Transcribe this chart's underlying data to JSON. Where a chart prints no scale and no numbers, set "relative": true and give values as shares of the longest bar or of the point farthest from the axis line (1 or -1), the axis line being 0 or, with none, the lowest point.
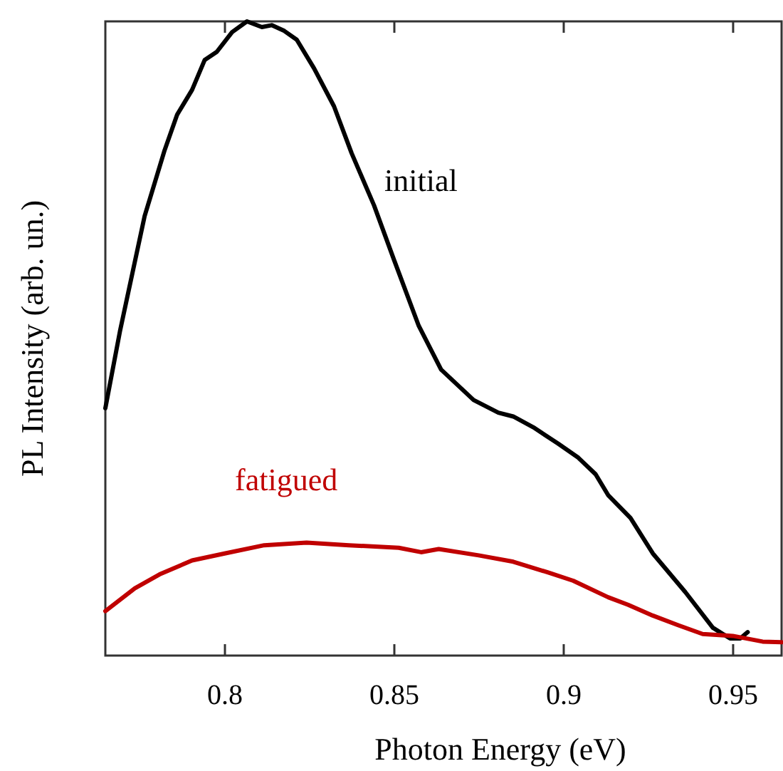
{
  "chart_data": {
    "type": "line",
    "xlabel": "Photon Energy (eV)",
    "ylabel": "PL Intensity (arb. un.)",
    "relative": true,
    "xlim": [
      0.7647,
      0.9643
    ],
    "xticks": [
      0.8,
      0.85,
      0.9,
      0.95
    ],
    "legend": false,
    "grid": false,
    "marker": "none",
    "line_style": "solid",
    "series": [
      {
        "name": "initial",
        "color": "#000000",
        "x": [
          0.7647,
          0.769,
          0.7763,
          0.7822,
          0.7859,
          0.7903,
          0.794,
          0.7976,
          0.8021,
          0.8065,
          0.8109,
          0.8138,
          0.8175,
          0.8212,
          0.8263,
          0.8322,
          0.8374,
          0.844,
          0.8499,
          0.8572,
          0.8638,
          0.8734,
          0.8807,
          0.8851,
          0.891,
          0.8984,
          0.9043,
          0.9094,
          0.9131,
          0.9197,
          0.9263,
          0.9359,
          0.944,
          0.9491,
          0.9521,
          0.9543
        ],
        "values": [
          0.39,
          0.511,
          0.693,
          0.797,
          0.853,
          0.892,
          0.939,
          0.952,
          0.983,
          1.0,
          0.991,
          0.994,
          0.985,
          0.971,
          0.926,
          0.866,
          0.792,
          0.71,
          0.624,
          0.52,
          0.451,
          0.403,
          0.383,
          0.377,
          0.36,
          0.334,
          0.312,
          0.286,
          0.253,
          0.217,
          0.161,
          0.1,
          0.044,
          0.027,
          0.027,
          0.037
        ]
      },
      {
        "name": "fatigued",
        "color": "#c00000",
        "x": [
          0.7647,
          0.7734,
          0.7807,
          0.7903,
          0.7999,
          0.8116,
          0.8241,
          0.8366,
          0.8513,
          0.8579,
          0.8631,
          0.8749,
          0.8851,
          0.8954,
          0.9028,
          0.9131,
          0.919,
          0.9263,
          0.9337,
          0.941,
          0.9499,
          0.9587,
          0.9643
        ],
        "values": [
          0.07,
          0.106,
          0.128,
          0.15,
          0.161,
          0.174,
          0.178,
          0.174,
          0.17,
          0.163,
          0.168,
          0.158,
          0.148,
          0.131,
          0.118,
          0.092,
          0.08,
          0.063,
          0.048,
          0.034,
          0.031,
          0.022,
          0.021
        ]
      }
    ]
  }
}
